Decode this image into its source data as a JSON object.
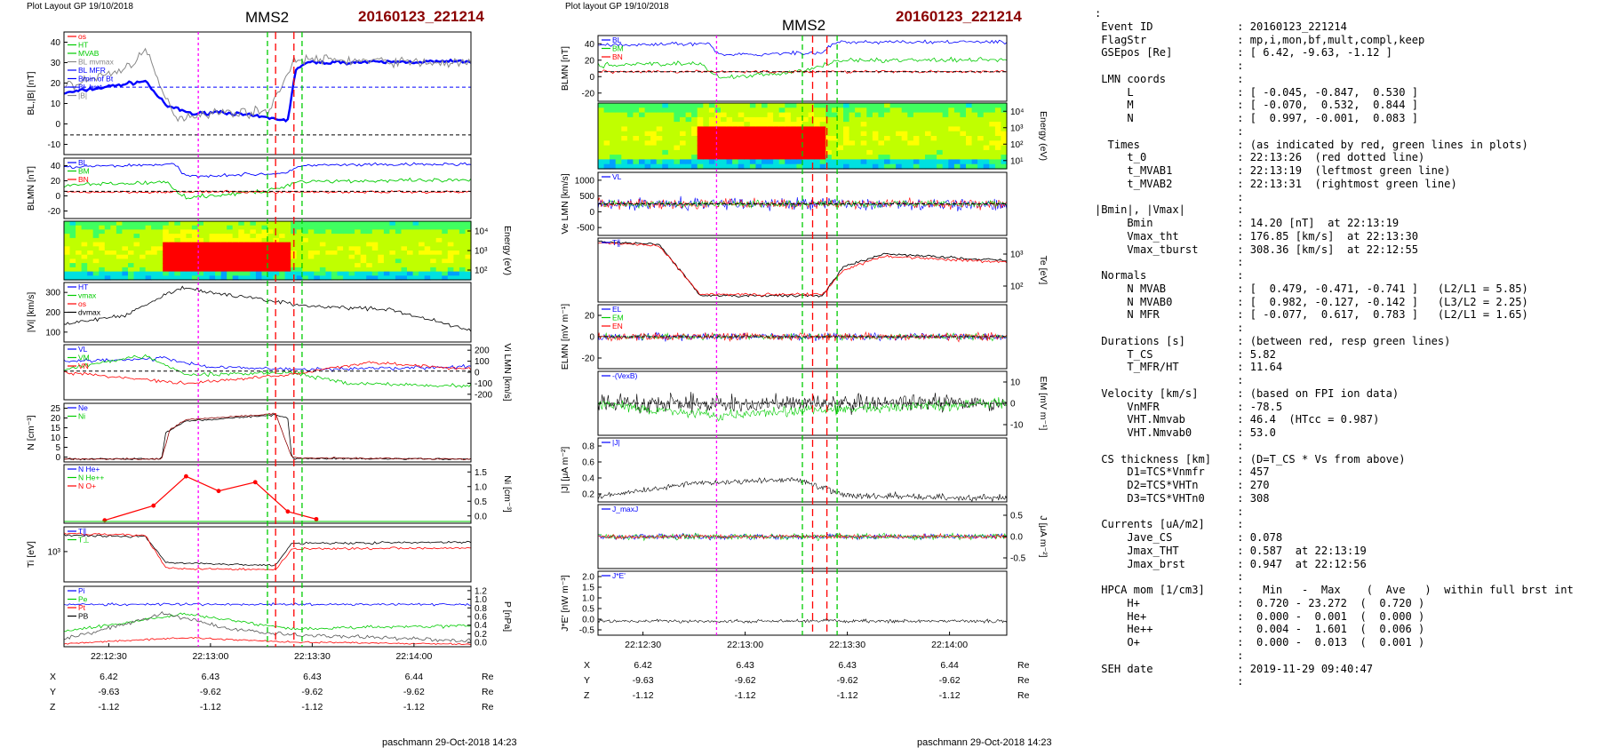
{
  "header": {
    "left_plot_caption": "Plot Layout GP 19/10/2018",
    "right_plot_caption": "Plot layout GP 19/10/2018",
    "probe": "MMS2",
    "event": "20160123_221214"
  },
  "footer": {
    "left": "paschmann 29-Oct-2018 14:23",
    "right": "paschmann 29-Oct-2018 14:23"
  },
  "time_axis": {
    "ticks": [
      "22:12:30",
      "22:13:00",
      "22:13:30",
      "22:14:00"
    ],
    "rows": [
      {
        "label": "X",
        "values": [
          "6.42",
          "6.43",
          "6.43",
          "6.44"
        ],
        "unit": "Re"
      },
      {
        "label": "Y",
        "values": [
          "-9.63",
          "-9.62",
          "-9.62",
          "-9.62"
        ],
        "unit": "Re"
      },
      {
        "label": "Z",
        "values": [
          "-1.12",
          "-1.12",
          "-1.12",
          "-1.12"
        ],
        "unit": "Re"
      }
    ]
  },
  "chart_data": [
    {
      "type": "line",
      "panels": [
        {
          "ylabel": "BL,|B| [nT]",
          "yticks": [
            "40",
            "30",
            "20",
            "10",
            "0",
            "-10"
          ],
          "legend": [
            "os",
            "HT",
            "MVAB",
            "BL mvmax",
            "BL MFR",
            "Bmin of Bt",
            "BL brst",
            "|B|"
          ]
        },
        {
          "ylabel": "BLMN [nT]",
          "yticks": [
            "40",
            "20",
            "0",
            "-20"
          ],
          "legend": [
            "BL",
            "BM",
            "BN"
          ]
        },
        {
          "ylabel": "Energy (eV)",
          "yticks": [
            "10⁴",
            "10³",
            "10²"
          ],
          "type": "heatmap"
        },
        {
          "ylabel": "|Vi| [km/s]",
          "yticks": [
            "300",
            "200",
            "100"
          ],
          "legend": [
            "HT",
            "vmax",
            "os",
            "dvmax"
          ]
        },
        {
          "ylabel": "Vi LMN [km/s]",
          "yticks": [
            "200",
            "100",
            "0",
            "-100",
            "-200"
          ],
          "legend": [
            "VL",
            "VM",
            "VN"
          ]
        },
        {
          "ylabel": "N [cm⁻³]",
          "yticks": [
            "25",
            "20",
            "15",
            "10",
            "5",
            "0"
          ],
          "legend": [
            "Ne",
            "Ni"
          ]
        },
        {
          "ylabel": "Ni [cm⁻³]",
          "yticks": [
            "1.5",
            "1.0",
            "0.5",
            "0.0"
          ],
          "legend": [
            "N He+",
            "N He++",
            "N O+"
          ]
        },
        {
          "ylabel": "Ti [eV]",
          "yticks": [
            "10³"
          ],
          "legend": [
            "T∥",
            "T⊥"
          ]
        },
        {
          "ylabel": "P [nPa]",
          "yticks": [
            "1.2",
            "1.0",
            "0.8",
            "0.6",
            "0.4",
            "0.2",
            "0.0"
          ],
          "legend": [
            "Pi",
            "Pe",
            "Pt",
            "PB"
          ]
        }
      ]
    },
    {
      "type": "line",
      "panels": [
        {
          "ylabel": "BLMN [nT]",
          "yticks": [
            "40",
            "20",
            "0",
            "-20"
          ],
          "legend": [
            "BL",
            "BM",
            "BN"
          ]
        },
        {
          "ylabel": "Energy (eV)",
          "yticks": [
            "10⁴",
            "10³",
            "10²",
            "10¹"
          ],
          "type": "heatmap"
        },
        {
          "ylabel": "Ve LMN [km/s]",
          "yticks": [
            "1000",
            "500",
            "0",
            "-500"
          ],
          "legend": [
            "VL"
          ]
        },
        {
          "ylabel": "Te [eV]",
          "yticks": [
            "10³",
            "10²"
          ],
          "legend": [
            "T∥"
          ]
        },
        {
          "ylabel": "ELMN [mV m⁻¹]",
          "yticks": [
            "20",
            "0",
            "-20"
          ],
          "legend": [
            "EL",
            "EM",
            "EN"
          ]
        },
        {
          "ylabel": "EM [mV m⁻¹]",
          "yticks": [
            "10",
            "0",
            "-10"
          ],
          "legend": [
            "-(VexB)"
          ]
        },
        {
          "ylabel": "|J| [μA m⁻²]",
          "yticks": [
            "0.8",
            "0.6",
            "0.4",
            "0.2"
          ],
          "legend": [
            "|J|"
          ]
        },
        {
          "ylabel": "J [μA m⁻²]",
          "yticks": [
            "0.5",
            "0.0",
            "-0.5"
          ],
          "legend": [
            "J_maxJ"
          ]
        },
        {
          "ylabel": "J*E' [nW m⁻³]",
          "yticks": [
            "2.0",
            "1.5",
            "1.0",
            "0.5",
            "0.0",
            "-0.5"
          ],
          "legend": [
            "J*E'"
          ]
        }
      ]
    }
  ],
  "info_lines": [
    ":",
    " Event ID             : 20160123_221214",
    " FlagStr              : mp,i,mon,bf,mult,compl,keep",
    " GSEpos [Re]          : [ 6.42, -9.63, -1.12 ]",
    "                      :",
    " LMN coords           :",
    "     L                : [ -0.045, -0.847,  0.530 ]",
    "     M                : [ -0.070,  0.532,  0.844 ]",
    "     N                : [  0.997, -0.001,  0.083 ]",
    "                      :",
    "  Times               : (as indicated by red, green lines in plots)",
    "     t_0              : 22:13:26  (red dotted line)",
    "     t_MVAB1          : 22:13:19  (leftmost green line)",
    "     t_MVAB2          : 22:13:31  (rightmost green line)",
    "                      :",
    "|Bmin|, |Vmax|        :",
    "     Bmin             : 14.20 [nT]  at 22:13:19",
    "     Vmax_tht         : 176.85 [km/s]  at 22:13:30",
    "     Vmax_tburst      : 308.36 [km/s]  at 22:12:55",
    "                      :",
    " Normals              :",
    "     N MVAB           : [  0.479, -0.471, -0.741 ]   (L2/L1 = 5.85)",
    "     N MVAB0          : [  0.982, -0.127, -0.142 ]   (L3/L2 = 2.25)",
    "     N MFR            : [ -0.077,  0.617,  0.783 ]   (L2/L1 = 1.65)",
    "                      :",
    " Durations [s]        : (between red, resp green lines)",
    "     T_CS             : 5.82",
    "     T_MFR/HT         : 11.64",
    "                      :",
    " Velocity [km/s]      : (based on FPI ion data)",
    "     VnMFR            : -78.5",
    "     VHT.Nmvab        : 46.4  (HTcc = 0.987)",
    "     VHT.Nmvab0       : 53.0",
    "                      :",
    " CS thickness [km]    : (D=T_CS * Vs from above)",
    "     D1=TCS*Vnmfr     : 457",
    "     D2=TCS*VHTn      : 270",
    "     D3=TCS*VHTn0     : 308",
    "                      :",
    " Currents [uA/m2]     :",
    "     Jave_CS          : 0.078",
    "     Jmax_THT         : 0.587  at 22:13:19",
    "     Jmax_brst        : 0.947  at 22:12:56",
    "                      :",
    " HPCA mom [1/cm3]     :   Min   -  Max    (  Ave   )  within full brst int",
    "     H+               :  0.720 - 23.272  (  0.720 )",
    "     He+              :  0.000 -  0.001  (  0.000 )",
    "     He++             :  0.004 -  1.601  (  0.006 )",
    "     O+               :  0.000 -  0.013  (  0.001 )",
    "                      :",
    " SEH date             : 2019-11-29 09:40:47",
    "                      :"
  ],
  "colors": {
    "blue": "#0000ff",
    "green": "#00cc00",
    "red": "#ff0000",
    "magenta": "#ff00ff",
    "grey": "#888888",
    "title_red": "#8b0000",
    "cyan": "#00aaaa"
  }
}
